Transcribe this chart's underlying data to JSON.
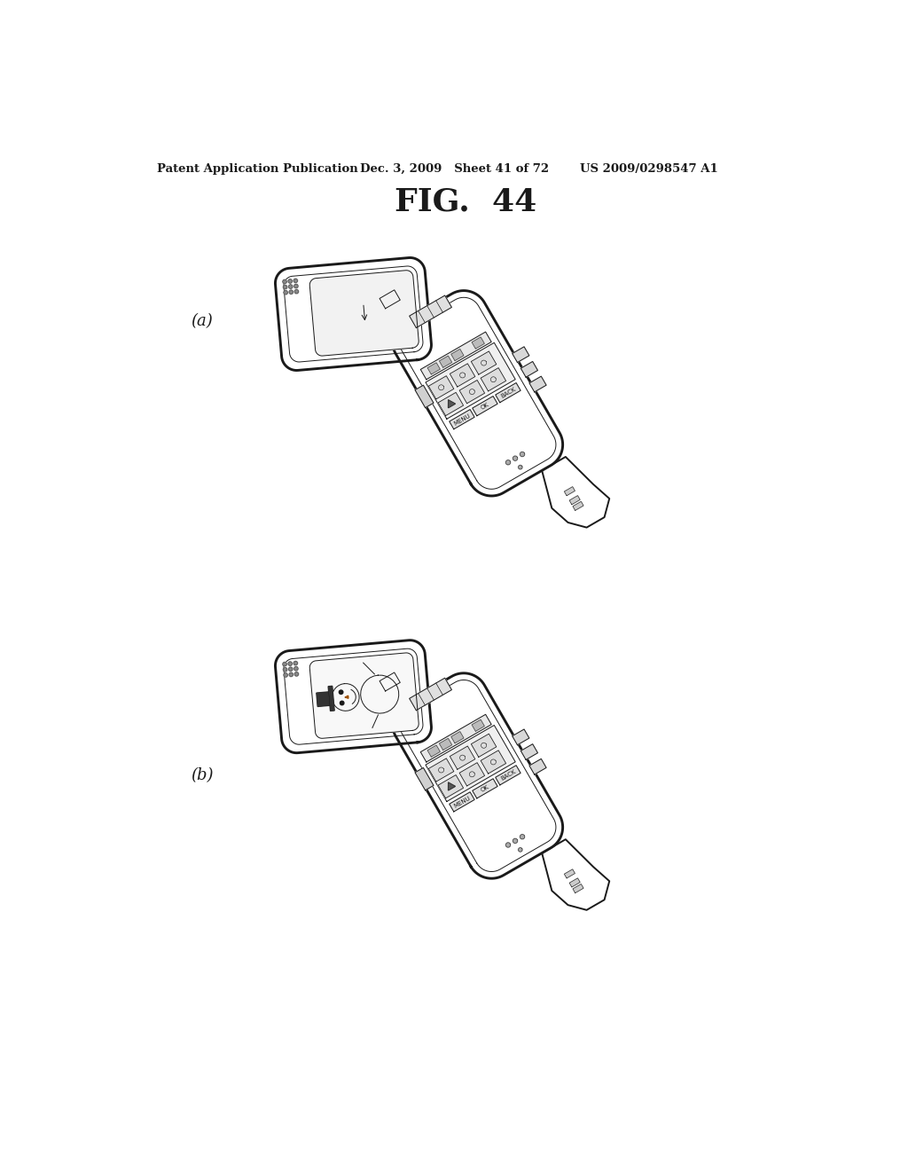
{
  "title": "FIG.  44",
  "header_left": "Patent Application Publication",
  "header_mid": "Dec. 3, 2009   Sheet 41 of 72",
  "header_right": "US 2009/0298547 A1",
  "label_a": "(a)",
  "label_b": "(b)",
  "bg_color": "#ffffff",
  "line_color": "#1a1a1a",
  "line_width": 1.4,
  "thin_line": 0.7,
  "header_fontsize": 9.5,
  "title_fontsize": 26,
  "label_fontsize": 13
}
